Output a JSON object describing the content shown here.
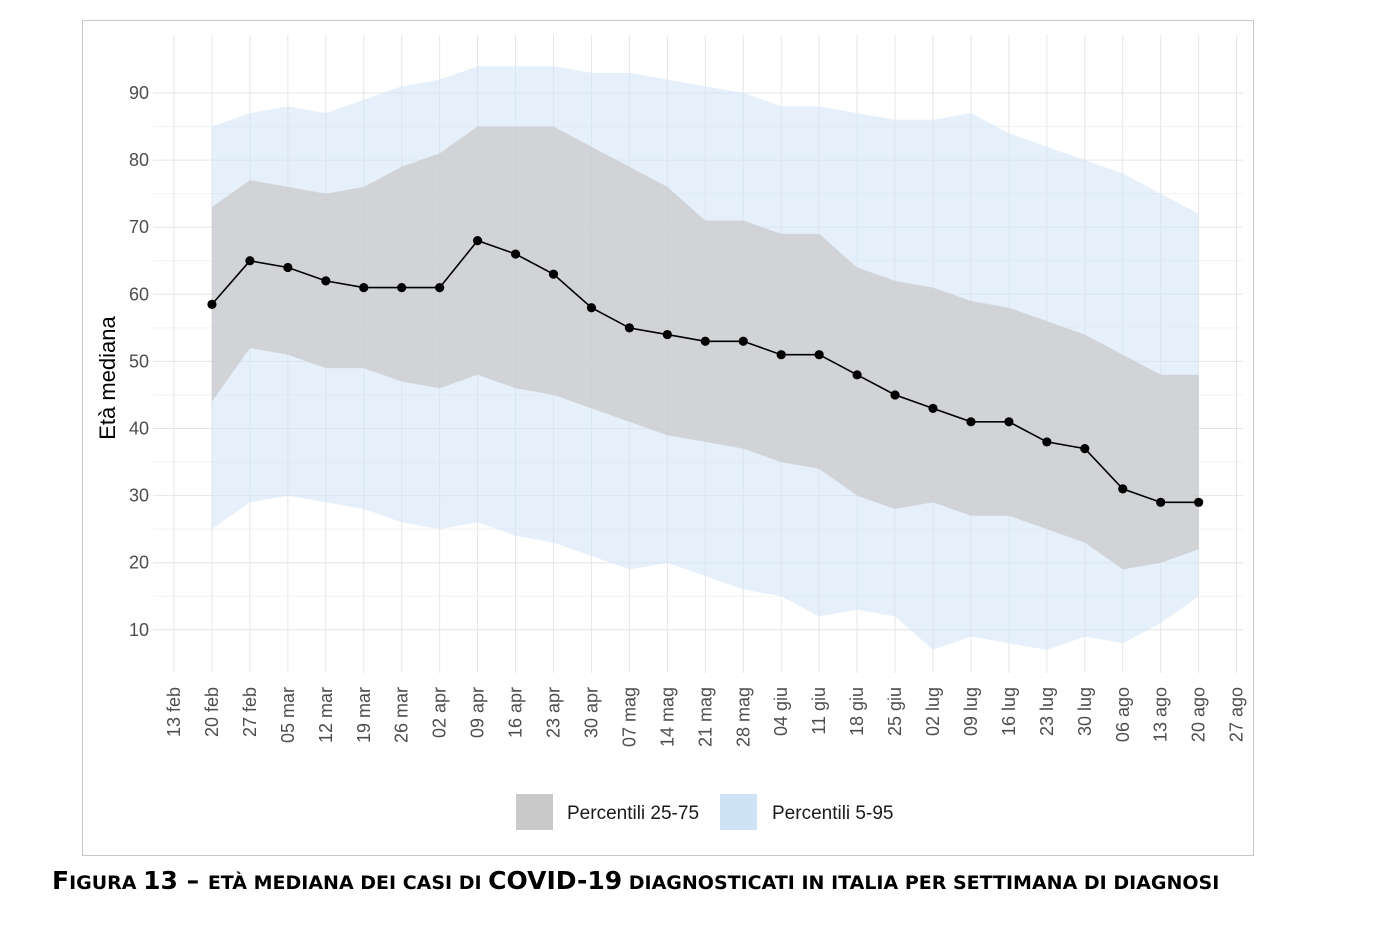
{
  "chart_data": {
    "type": "line",
    "title": "",
    "xlabel": "",
    "ylabel": "Età mediana",
    "ylim": [
      3,
      97
    ],
    "y_ticks": [
      10,
      20,
      30,
      40,
      50,
      60,
      70,
      80,
      90
    ],
    "x_tick_labels": [
      "13 feb",
      "20 feb",
      "27 feb",
      "05 mar",
      "12 mar",
      "19 mar",
      "26 mar",
      "02 apr",
      "09 apr",
      "16 apr",
      "23 apr",
      "30 apr",
      "07 mag",
      "14 mag",
      "21 mag",
      "28 mag",
      "04 giu",
      "11 giu",
      "18 giu",
      "25 giu",
      "02 lug",
      "09 lug",
      "16 lug",
      "23 lug",
      "30 lug",
      "06 ago",
      "13 ago",
      "20 ago",
      "27 ago"
    ],
    "x": [
      "20 feb",
      "27 feb",
      "05 mar",
      "12 mar",
      "19 mar",
      "26 mar",
      "02 apr",
      "09 apr",
      "16 apr",
      "23 apr",
      "30 apr",
      "07 mag",
      "14 mag",
      "21 mag",
      "28 mag",
      "04 giu",
      "11 giu",
      "18 giu",
      "25 giu",
      "02 lug",
      "09 lug",
      "16 lug",
      "23 lug",
      "30 lug",
      "06 ago",
      "13 ago",
      "20 ago"
    ],
    "series": [
      {
        "values": [
          58.5,
          65,
          64,
          62,
          61,
          61,
          61,
          68,
          66,
          63,
          58,
          55,
          54,
          53,
          53,
          51,
          51,
          48,
          45,
          43,
          41,
          41,
          38,
          37,
          31,
          29,
          29
        ]
      }
    ],
    "bands": [
      {
        "name": "Percentili 5-95",
        "color": "#cfe3f7",
        "lower": [
          25,
          29,
          30,
          29,
          28,
          26,
          25,
          26,
          24,
          23,
          21,
          19,
          20,
          18,
          16,
          15,
          12,
          13,
          12,
          7,
          9,
          8,
          7,
          9,
          8,
          11,
          15
        ],
        "upper": [
          85,
          87,
          88,
          87,
          89,
          91,
          92,
          94,
          94,
          94,
          93,
          93,
          92,
          91,
          90,
          88,
          88,
          87,
          86,
          86,
          87,
          84,
          82,
          80,
          78,
          75,
          72
        ]
      },
      {
        "name": "Percentili 25-75",
        "color": "#c9c9c9",
        "lower": [
          44,
          52,
          51,
          49,
          49,
          47,
          46,
          48,
          46,
          45,
          43,
          41,
          39,
          38,
          37,
          35,
          34,
          30,
          28,
          29,
          27,
          27,
          25,
          23,
          19,
          20,
          22
        ],
        "upper": [
          73,
          77,
          76,
          75,
          76,
          79,
          81,
          85,
          85,
          85,
          82,
          79,
          76,
          71,
          71,
          69,
          69,
          64,
          62,
          61,
          59,
          58,
          56,
          54,
          51,
          48,
          48
        ]
      }
    ],
    "grid": true,
    "legend": "bottom",
    "legend_entries": [
      "Percentili 25-75",
      "Percentili 5-95"
    ],
    "colors": {
      "iqr": "#c9c9c9",
      "p595": "#cfe3f7",
      "line": "#000000"
    }
  },
  "caption": {
    "part1": "F",
    "part2": "IGURA ",
    "part3": "13 – ",
    "part4": "ETÀ MEDIANA DEI CASI DI ",
    "part5": "COVID-19",
    "part6": " DIAGNOSTICATI IN ITALIA PER SETTIMANA DI DIAGNOSI"
  }
}
